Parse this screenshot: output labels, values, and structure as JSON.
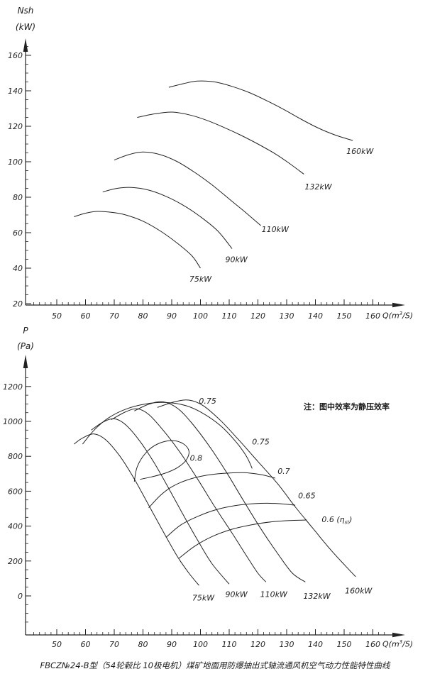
{
  "figure": {
    "caption": "FBCZ№24-B型（54轮毂比 10极电机）煤矿地面用防爆抽出式轴流通风机空气动力性能特性曲线",
    "line_color": "#222222",
    "background": "#ffffff"
  },
  "chart_data": [
    {
      "type": "line",
      "id": "shaft-power-curves",
      "title": "",
      "ylabel": "Nsh",
      "ylabel_unit": "(kW)",
      "xlabel_pre": "Q(m",
      "xlabel_sup": "3",
      "xlabel_post": "/S)",
      "xlim": [
        41,
        164
      ],
      "ylim": [
        20,
        165
      ],
      "x_ticks": [
        50,
        60,
        70,
        80,
        90,
        100,
        110,
        120,
        130,
        140,
        150,
        160
      ],
      "x_minor_step": 2,
      "y_ticks": [
        20,
        40,
        60,
        80,
        100,
        120,
        140,
        160
      ],
      "y_minor_step": 5,
      "grid": false,
      "series": [
        {
          "name": "75kW",
          "label": "75kW",
          "label_at": [
            100,
            34
          ],
          "points": [
            [
              56,
              69
            ],
            [
              60,
              71
            ],
            [
              64,
              72
            ],
            [
              69,
              71.5
            ],
            [
              74,
              70
            ],
            [
              80,
              66.5
            ],
            [
              86,
              61
            ],
            [
              92,
              54
            ],
            [
              97,
              47
            ],
            [
              100,
              40
            ]
          ]
        },
        {
          "name": "90kW",
          "label": "90kW",
          "label_at": [
            112.5,
            45
          ],
          "points": [
            [
              66,
              83
            ],
            [
              71,
              85
            ],
            [
              76,
              85.5
            ],
            [
              82,
              84
            ],
            [
              88,
              80.5
            ],
            [
              94,
              75.5
            ],
            [
              100,
              69
            ],
            [
              106,
              61
            ],
            [
              111,
              51
            ]
          ]
        },
        {
          "name": "110kW",
          "label": "110kW",
          "label_at": [
            126,
            62
          ],
          "points": [
            [
              70,
              101
            ],
            [
              75,
              104
            ],
            [
              80,
              105.5
            ],
            [
              86,
              104
            ],
            [
              92,
              100
            ],
            [
              98,
              94
            ],
            [
              104,
              87
            ],
            [
              110,
              79
            ],
            [
              116,
              71
            ],
            [
              121,
              64
            ]
          ]
        },
        {
          "name": "132kW",
          "label": "132kW",
          "label_at": [
            141,
            86
          ],
          "points": [
            [
              78,
              125
            ],
            [
              84,
              127
            ],
            [
              90,
              128
            ],
            [
              96,
              126.5
            ],
            [
              102,
              123.5
            ],
            [
              108,
              119.5
            ],
            [
              114,
              115
            ],
            [
              120,
              110
            ],
            [
              126,
              104.5
            ],
            [
              131,
              99
            ],
            [
              136,
              93
            ]
          ]
        },
        {
          "name": "160kW",
          "label": "160kW",
          "label_at": [
            155.5,
            106
          ],
          "points": [
            [
              89,
              142
            ],
            [
              94,
              144
            ],
            [
              99,
              145.5
            ],
            [
              105,
              145
            ],
            [
              111,
              142.5
            ],
            [
              117,
              139
            ],
            [
              123,
              134.5
            ],
            [
              129,
              129.5
            ],
            [
              135,
              124
            ],
            [
              141,
              119
            ],
            [
              147,
              115
            ],
            [
              153,
              112
            ]
          ]
        }
      ]
    },
    {
      "type": "line",
      "id": "pressure-efficiency-curves",
      "title": "",
      "ylabel": "P",
      "ylabel_unit": "(Pa)",
      "xlabel_pre": "Q(m",
      "xlabel_sup": "3",
      "xlabel_post": "/S)",
      "note_text": "注：图中效率为静压效率",
      "xlim": [
        41,
        164
      ],
      "ylim": [
        0,
        1250
      ],
      "x_ticks": [
        50,
        60,
        70,
        80,
        90,
        100,
        110,
        120,
        130,
        140,
        150,
        160
      ],
      "x_minor_step": 2,
      "y_ticks": [
        0,
        200,
        400,
        600,
        800,
        1000,
        1200
      ],
      "y_minor_step": 50,
      "grid": false,
      "series": [
        {
          "name": "75kW",
          "label": "75kW",
          "label_at": [
            101,
            -10
          ],
          "points": [
            [
              56,
              870
            ],
            [
              59,
              905
            ],
            [
              63,
              928
            ],
            [
              67,
              895
            ],
            [
              72,
              800
            ],
            [
              77,
              670
            ],
            [
              82,
              520
            ],
            [
              87,
              370
            ],
            [
              92,
              225
            ],
            [
              96,
              130
            ],
            [
              99.5,
              60
            ]
          ]
        },
        {
          "name": "90kW",
          "label": "90kW",
          "label_at": [
            112.5,
            10
          ],
          "points": [
            [
              62,
              950
            ],
            [
              66,
              995
            ],
            [
              70,
              1015
            ],
            [
              74,
              980
            ],
            [
              79,
              885
            ],
            [
              84,
              760
            ],
            [
              89,
              615
            ],
            [
              94,
              465
            ],
            [
              99,
              320
            ],
            [
              104,
              185
            ],
            [
              110,
              68
            ]
          ]
        },
        {
          "name": "110kW",
          "label": "110kW",
          "label_at": [
            125.5,
            10
          ],
          "points": [
            [
              69,
              1010
            ],
            [
              74,
              1055
            ],
            [
              78,
              1072
            ],
            [
              82,
              1040
            ],
            [
              87,
              950
            ],
            [
              93,
              820
            ],
            [
              99,
              670
            ],
            [
              105,
              510
            ],
            [
              111,
              360
            ],
            [
              116,
              230
            ],
            [
              120,
              130
            ],
            [
              122.8,
              80
            ]
          ]
        },
        {
          "name": "132kW",
          "label": "132kW",
          "label_at": [
            140.5,
            0
          ],
          "points": [
            [
              77,
              1060
            ],
            [
              82,
              1098
            ],
            [
              87,
              1112
            ],
            [
              92,
              1075
            ],
            [
              97,
              990
            ],
            [
              103,
              860
            ],
            [
              109,
              710
            ],
            [
              115,
              545
            ],
            [
              121,
              385
            ],
            [
              127,
              240
            ],
            [
              132,
              130
            ],
            [
              136.5,
              80
            ]
          ]
        },
        {
          "name": "160kW",
          "label": "160kW",
          "label_at": [
            155,
            30
          ],
          "points": [
            [
              85,
              1080
            ],
            [
              91,
              1112
            ],
            [
              96,
              1122
            ],
            [
              101,
              1090
            ],
            [
              107,
              1005
            ],
            [
              113,
              900
            ],
            [
              120,
              770
            ],
            [
              127,
              640
            ],
            [
              133,
              510
            ],
            [
              139,
              390
            ],
            [
              145,
              270
            ],
            [
              150,
              180
            ],
            [
              154,
              110
            ]
          ]
        },
        {
          "name": "eff-0.8",
          "label": "0.8",
          "label_at": [
            98.5,
            790
          ],
          "points": [
            [
              77,
              655
            ],
            [
              78,
              740
            ],
            [
              81,
              820
            ],
            [
              85,
              870
            ],
            [
              90,
              890
            ],
            [
              94,
              872
            ],
            [
              96,
              830
            ],
            [
              95,
              778
            ],
            [
              92,
              735
            ],
            [
              88,
              705
            ],
            [
              83,
              682
            ],
            [
              79,
              668
            ]
          ]
        },
        {
          "name": "eff-0.75",
          "label": "0.75",
          "label_at": [
            102.5,
            1118
          ],
          "label2": "0.75",
          "label2_at": [
            121,
            885
          ],
          "points": [
            [
              59,
              870
            ],
            [
              63,
              950
            ],
            [
              68,
              1020
            ],
            [
              74,
              1070
            ],
            [
              81,
              1100
            ],
            [
              88,
              1108
            ],
            [
              95,
              1090
            ],
            [
              101,
              1045
            ],
            [
              107,
              975
            ],
            [
              112,
              890
            ],
            [
              116,
              800
            ],
            [
              118,
              730
            ]
          ]
        },
        {
          "name": "eff-0.7",
          "label": "0.7",
          "label_at": [
            129,
            715
          ],
          "points": [
            [
              82,
              505
            ],
            [
              86,
              575
            ],
            [
              90,
              625
            ],
            [
              95,
              662
            ],
            [
              101,
              688
            ],
            [
              108,
              702
            ],
            [
              115,
              706
            ],
            [
              121,
              695
            ],
            [
              126,
              675
            ]
          ]
        },
        {
          "name": "eff-0.65",
          "label": "0.65",
          "label_at": [
            137,
            575
          ],
          "points": [
            [
              88,
              335
            ],
            [
              93,
              405
            ],
            [
              99,
              455
            ],
            [
              105,
              492
            ],
            [
              112,
              517
            ],
            [
              119,
              529
            ],
            [
              126,
              530
            ],
            [
              133,
              520
            ]
          ]
        },
        {
          "name": "eff-0.6",
          "label": "0.6 (η",
          "label_sub": "st",
          "label_tail": ")",
          "label_at": [
            147.5,
            440
          ],
          "points": [
            [
              92.5,
              215
            ],
            [
              98,
              285
            ],
            [
              104,
              340
            ],
            [
              111,
              382
            ],
            [
              118,
              408
            ],
            [
              125,
              425
            ],
            [
              131,
              432
            ],
            [
              137,
              435
            ]
          ]
        }
      ]
    }
  ]
}
